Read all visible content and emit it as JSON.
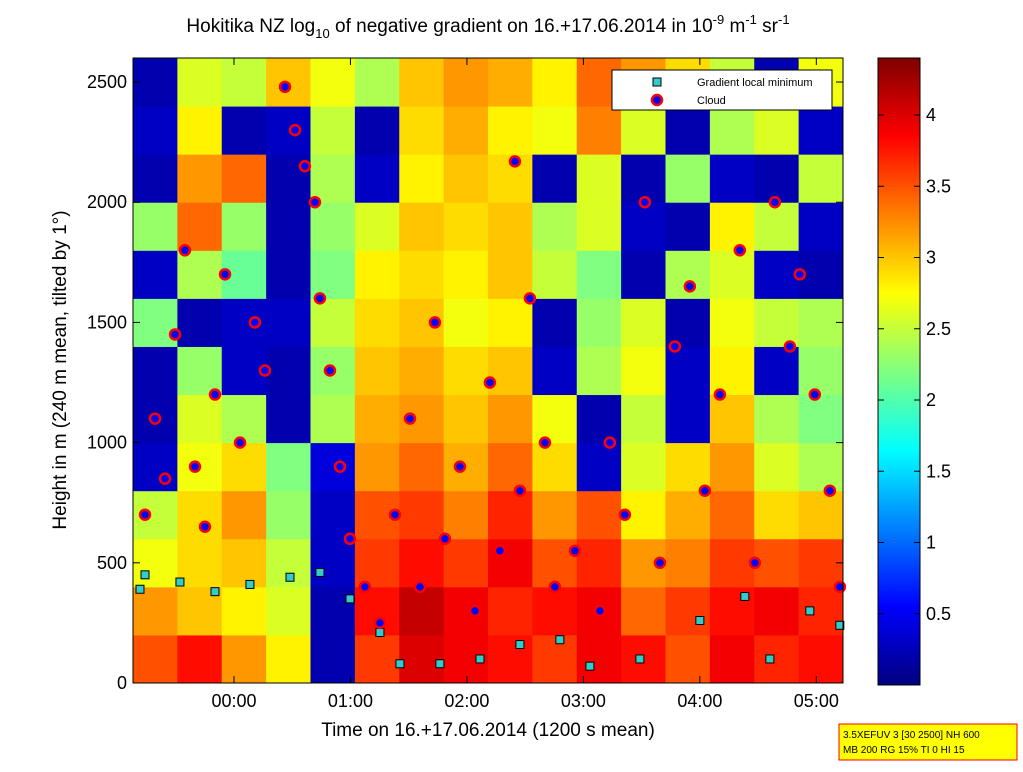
{
  "chart_data": {
    "type": "heatmap",
    "title": [
      "Hokitika NZ log",
      "10",
      " of negative gradient on 16.+17.06.2014 in 10",
      "-9",
      " m",
      "-1",
      " sr",
      "-1"
    ],
    "x_label": "Time on 16.+17.06.2014 (1200 s mean)",
    "y_label": "Height in m (240 m mean, tilted by 1°)",
    "xlim": [
      23.133,
      29.229
    ],
    "xticks": [
      {
        "value": 24,
        "label": "00:00"
      },
      {
        "value": 25,
        "label": "01:00"
      },
      {
        "value": 26,
        "label": "02:00"
      },
      {
        "value": 27,
        "label": "03:00"
      },
      {
        "value": 28,
        "label": "04:00"
      },
      {
        "value": 29,
        "label": "05:00"
      }
    ],
    "ylim": [
      0,
      2600
    ],
    "yticks": [
      0,
      500,
      1000,
      1500,
      2000,
      2500
    ],
    "clim": [
      0,
      4.4
    ],
    "cticks": [
      0.5,
      1,
      1.5,
      2,
      2.5,
      3,
      3.5,
      4
    ],
    "colormap": "jet",
    "x_edges": [
      23.133,
      23.514,
      23.895,
      24.276,
      24.657,
      25.038,
      25.419,
      25.8,
      26.181,
      26.562,
      26.943,
      27.324,
      27.705,
      28.086,
      28.467,
      28.848,
      29.229
    ],
    "y_edges": [
      0,
      200,
      400,
      600,
      800,
      1000,
      1200,
      1400,
      1600,
      1800,
      2000,
      2200,
      2400,
      2600
    ],
    "z": [
      [
        3.5,
        3.8,
        3.2,
        2.8,
        0.2,
        3.6,
        4.0,
        3.9,
        3.8,
        3.6,
        3.9,
        3.8,
        3.5,
        3.9,
        3.7,
        3.8
      ],
      [
        3.2,
        3.0,
        2.8,
        2.6,
        0.2,
        3.8,
        4.1,
        3.9,
        3.7,
        3.8,
        3.9,
        3.4,
        3.6,
        3.8,
        3.9,
        3.7
      ],
      [
        2.7,
        2.9,
        3.0,
        2.5,
        0.3,
        3.6,
        3.8,
        3.6,
        3.9,
        3.5,
        3.7,
        3.2,
        3.3,
        3.6,
        3.5,
        3.6
      ],
      [
        2.5,
        2.9,
        3.2,
        2.3,
        0.3,
        3.5,
        3.6,
        3.3,
        3.7,
        3.2,
        3.5,
        2.8,
        3.1,
        3.4,
        2.9,
        3.0
      ],
      [
        0.3,
        2.7,
        2.9,
        2.2,
        0.4,
        3.2,
        3.4,
        3.1,
        3.4,
        2.9,
        0.3,
        2.6,
        2.9,
        3.2,
        2.6,
        2.4
      ],
      [
        0.2,
        2.6,
        2.4,
        0.2,
        2.4,
        3.1,
        3.2,
        3.0,
        3.2,
        2.7,
        0.2,
        2.5,
        0.3,
        3.0,
        2.4,
        2.2
      ],
      [
        0.2,
        2.3,
        0.3,
        0.2,
        2.3,
        3.0,
        3.1,
        2.9,
        3.0,
        0.3,
        2.4,
        2.7,
        0.3,
        2.8,
        0.3,
        2.3
      ],
      [
        2.2,
        0.2,
        0.3,
        0.3,
        2.5,
        2.9,
        3.0,
        2.7,
        2.8,
        0.2,
        2.3,
        2.6,
        0.2,
        2.7,
        2.5,
        2.4
      ],
      [
        0.3,
        2.4,
        2.1,
        0.2,
        2.2,
        2.8,
        2.9,
        2.8,
        3.0,
        2.5,
        2.2,
        0.2,
        2.4,
        2.6,
        0.3,
        0.2
      ],
      [
        2.3,
        3.4,
        2.3,
        0.2,
        2.3,
        2.6,
        3.0,
        2.9,
        3.0,
        2.4,
        2.6,
        0.3,
        0.2,
        2.8,
        2.5,
        0.3
      ],
      [
        0.2,
        3.2,
        3.4,
        0.2,
        2.4,
        0.3,
        2.8,
        3.0,
        2.9,
        0.2,
        2.6,
        0.2,
        2.3,
        0.3,
        0.2,
        2.5
      ],
      [
        0.3,
        2.8,
        0.2,
        0.3,
        2.5,
        0.2,
        2.9,
        3.1,
        2.8,
        2.7,
        3.3,
        2.6,
        0.2,
        2.4,
        2.6,
        0.3
      ],
      [
        0.2,
        2.6,
        2.5,
        3.0,
        2.7,
        2.4,
        3.0,
        3.2,
        3.1,
        2.8,
        3.4,
        3.2,
        2.9,
        2.5,
        0.2,
        2.7
      ]
    ],
    "series": [
      {
        "name": "Gradient local minimum",
        "marker": "square",
        "color": "#33cccc",
        "edge": "#000000",
        "x": [
          23.193,
          23.236,
          23.536,
          23.837,
          24.137,
          24.481,
          24.738,
          24.996,
          25.253,
          25.425,
          25.768,
          26.112,
          26.455,
          26.798,
          27.056,
          27.485,
          28.0,
          28.386,
          28.601,
          28.944,
          29.202
        ],
        "y": [
          390,
          450,
          420,
          380,
          410,
          440,
          460,
          350,
          210,
          80,
          80,
          100,
          160,
          180,
          70,
          100,
          260,
          360,
          100,
          300,
          240
        ]
      },
      {
        "name": "Cloud",
        "marker": "circle",
        "color": "#0000ff",
        "edge": "#ff0000",
        "x": [
          23.236,
          23.322,
          23.408,
          23.494,
          23.579,
          23.665,
          23.751,
          23.837,
          23.923,
          24.052,
          24.18,
          24.266,
          24.438,
          24.524,
          24.609,
          24.695,
          24.738,
          24.824,
          24.91,
          24.996,
          25.124,
          25.253,
          25.382,
          25.511,
          25.597,
          25.725,
          25.811,
          25.94,
          26.069,
          26.197,
          26.283,
          26.412,
          26.455,
          26.541,
          26.67,
          26.755,
          26.927,
          27.142,
          27.227,
          27.356,
          27.528,
          27.657,
          27.785,
          27.914,
          28.043,
          28.172,
          28.343,
          28.472,
          28.644,
          28.773,
          28.858,
          28.987,
          29.116,
          29.202
        ],
        "y": [
          700,
          1100,
          850,
          1450,
          1800,
          900,
          650,
          1200,
          1700,
          1000,
          1500,
          1300,
          2480,
          2300,
          2150,
          2000,
          1600,
          1300,
          900,
          600,
          400,
          250,
          700,
          1100,
          400,
          1500,
          600,
          900,
          300,
          1250,
          550,
          2170,
          800,
          1600,
          1000,
          400,
          550,
          300,
          1000,
          700,
          2000,
          500,
          1400,
          1650,
          800,
          1200,
          1800,
          500,
          2000,
          1400,
          1700,
          1200,
          800,
          400
        ]
      }
    ],
    "legend": "upper right",
    "annotation": [
      "3.5XEFUV 3 [30 2500] NH 600",
      "MB 200 RG 15% TI 0 HI 15"
    ]
  }
}
